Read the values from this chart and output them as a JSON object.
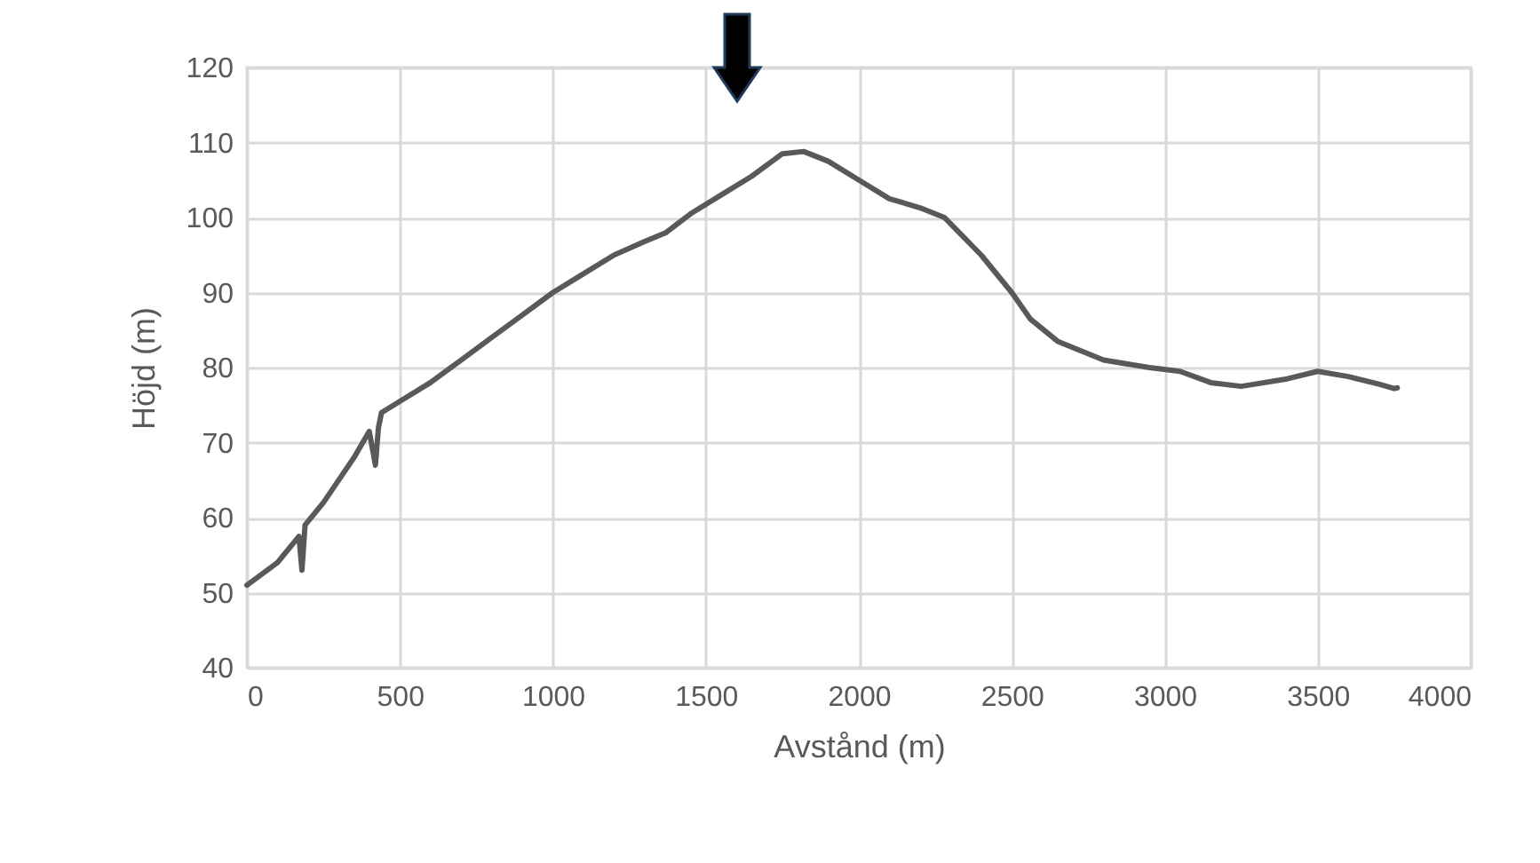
{
  "chart_data": {
    "type": "line",
    "xlabel": "Avstånd (m)",
    "ylabel": "Höjd (m)",
    "x": [
      0,
      100,
      170,
      180,
      190,
      250,
      350,
      400,
      420,
      430,
      440,
      500,
      600,
      700,
      800,
      900,
      1000,
      1100,
      1200,
      1300,
      1370,
      1450,
      1550,
      1650,
      1750,
      1820,
      1900,
      2000,
      2100,
      2200,
      2280,
      2400,
      2500,
      2560,
      2650,
      2800,
      2950,
      3050,
      3150,
      3250,
      3400,
      3500,
      3600,
      3700,
      3750,
      3760
    ],
    "series": [
      {
        "color": "#595959",
        "values": [
          51,
          54,
          57.5,
          53,
          59,
          62,
          68,
          71.5,
          67,
          72,
          74,
          75.5,
          78,
          81,
          84,
          87,
          90,
          92.5,
          95,
          96.8,
          98,
          100.5,
          103,
          105.5,
          108.5,
          108.8,
          107.5,
          105,
          102.5,
          101.3,
          100,
          95,
          90,
          86.5,
          83.5,
          81,
          80,
          79.5,
          78,
          77.5,
          78.5,
          79.5,
          78.8,
          77.8,
          77.2,
          77.3
        ]
      }
    ],
    "xlim": [
      0,
      4000
    ],
    "xticks": [
      0,
      500,
      1000,
      1500,
      2000,
      2500,
      3000,
      3500,
      4000
    ],
    "ylim": [
      40,
      120
    ],
    "yticks": [
      40,
      50,
      60,
      70,
      80,
      90,
      100,
      110,
      120
    ],
    "grid": true,
    "marker": "none",
    "line_style": "solid"
  }
}
